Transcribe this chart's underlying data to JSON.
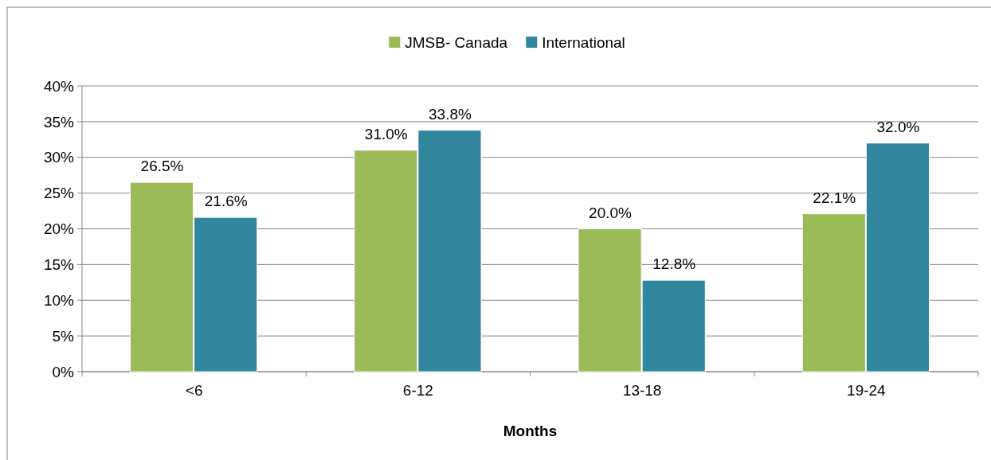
{
  "chart_data": {
    "type": "bar",
    "xlabel": "Months",
    "categories": [
      "<6",
      "6-12",
      "13-18",
      "19-24"
    ],
    "series": [
      {
        "name": "JMSB- Canada",
        "color": "#9bbb59",
        "values": [
          26.5,
          31.0,
          20.0,
          22.1
        ],
        "value_labels": [
          "26.5%",
          "31.0%",
          "20.0%",
          "22.1%"
        ]
      },
      {
        "name": "International",
        "color": "#31859c",
        "values": [
          21.6,
          33.8,
          12.8,
          32.0
        ],
        "value_labels": [
          "21.6%",
          "33.8%",
          "12.8%",
          "32.0%"
        ]
      }
    ],
    "ylim": [
      0,
      40
    ],
    "yticks": [
      {
        "value": 0,
        "label": "0%"
      },
      {
        "value": 5,
        "label": "5%"
      },
      {
        "value": 10,
        "label": "10%"
      },
      {
        "value": 15,
        "label": "15%"
      },
      {
        "value": 20,
        "label": "20%"
      },
      {
        "value": 25,
        "label": "25%"
      },
      {
        "value": 30,
        "label": "30%"
      },
      {
        "value": 35,
        "label": "35%"
      },
      {
        "value": 40,
        "label": "40%"
      }
    ],
    "grid": "y",
    "legend": "top"
  }
}
